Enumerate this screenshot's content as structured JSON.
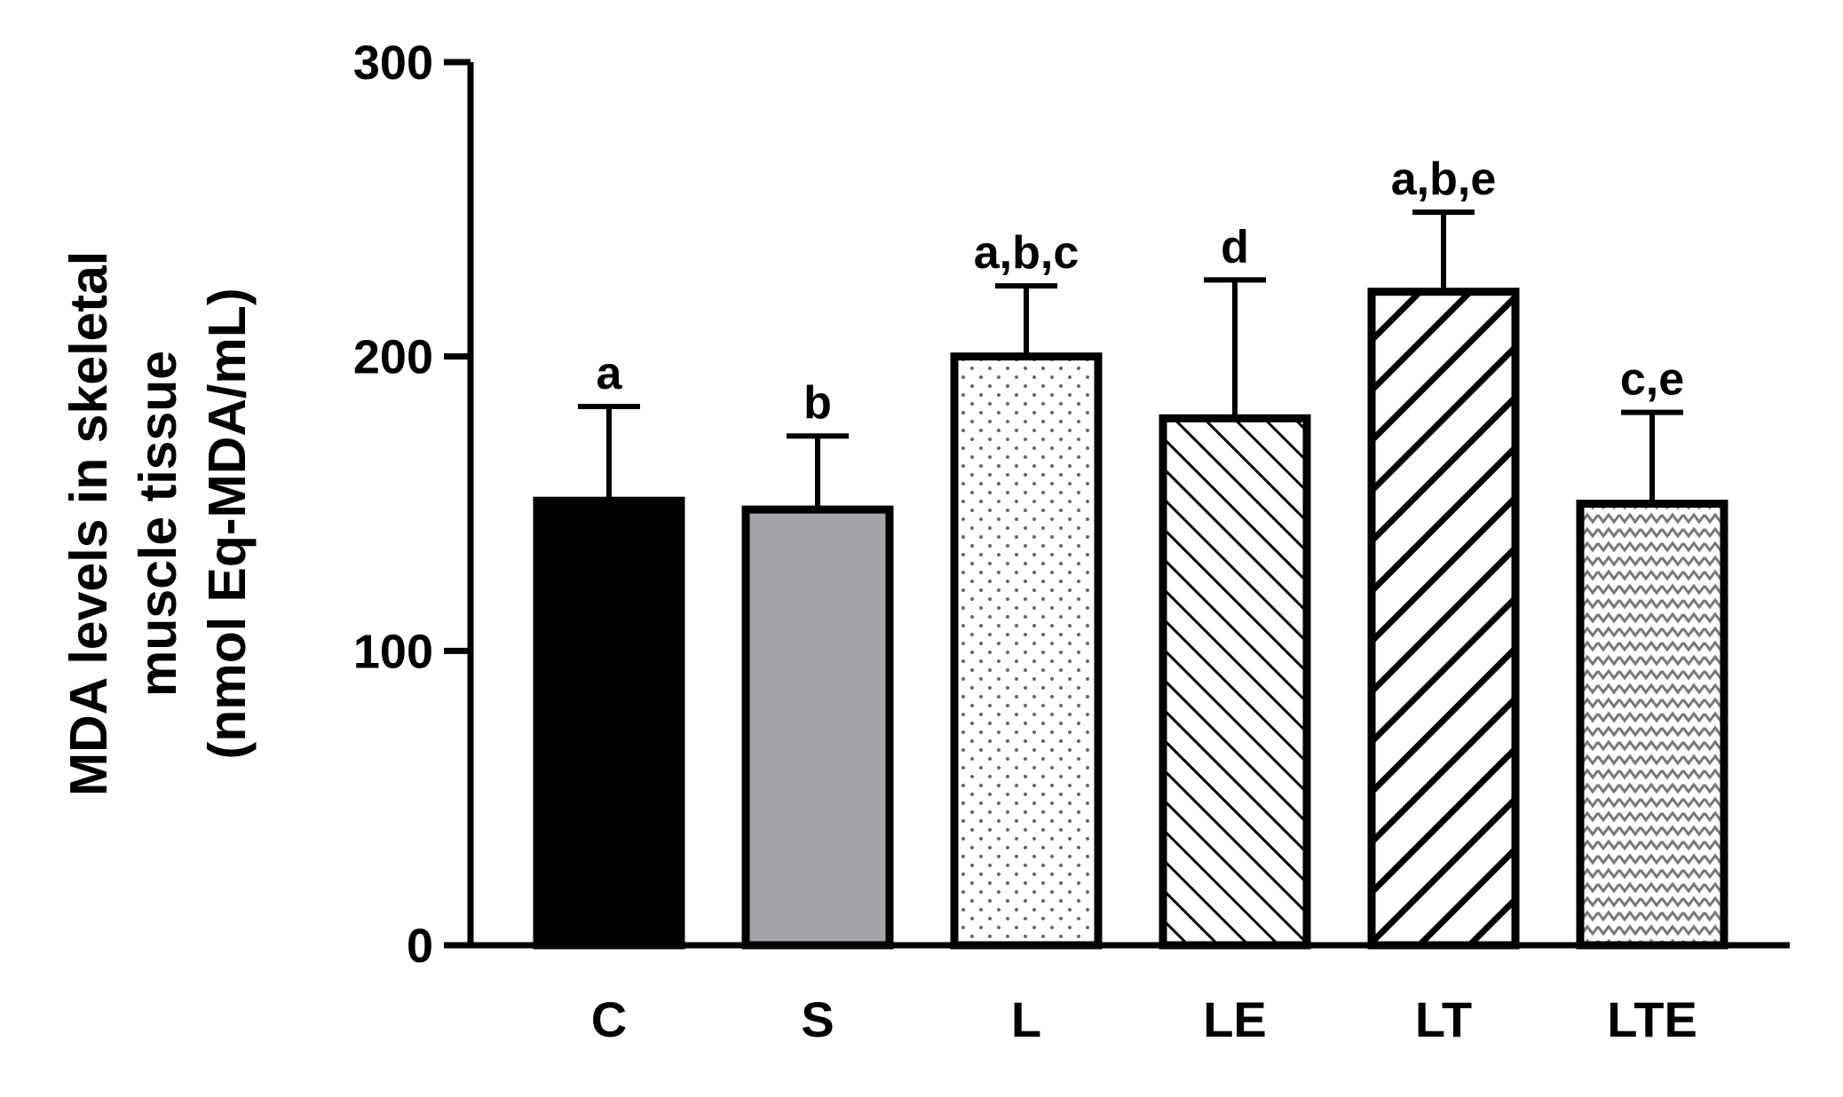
{
  "chart_data": {
    "type": "bar",
    "title": "",
    "xlabel": "",
    "ylabel": [
      "MDA levels in skeletal",
      "muscle tissue",
      "(nmol Eq-MDA/mL)"
    ],
    "ylim": [
      0,
      300
    ],
    "yticks": [
      "0",
      "100",
      "200",
      "300"
    ],
    "categories": [
      "C",
      "S",
      "L",
      "LE",
      "LT",
      "LTE"
    ],
    "values": [
      151,
      148,
      200,
      179,
      222,
      150
    ],
    "error_upper": [
      183,
      173,
      224,
      226,
      249,
      181
    ],
    "significance_labels": [
      "a",
      "b",
      "a,b,c",
      "d",
      "a,b,e",
      "c,e"
    ],
    "fills": [
      "solid-black",
      "solid-gray",
      "dots",
      "diagonal-fine",
      "diagonal-wide",
      "wave"
    ],
    "colors": {
      "black": "#000000",
      "gray": "#a3a3a8"
    },
    "grid": false,
    "legend": "none"
  }
}
